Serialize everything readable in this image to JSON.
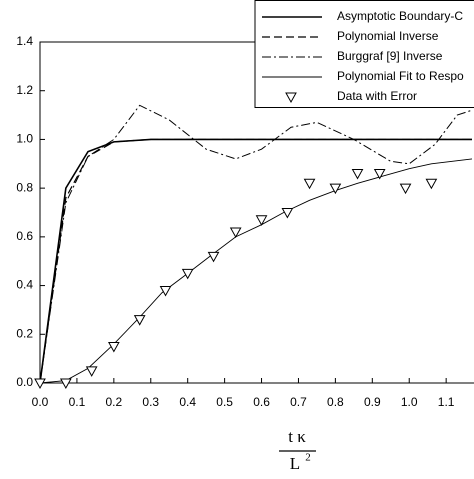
{
  "chart_data": {
    "type": "line",
    "x_label_numerator": "t κ",
    "x_label_denominator": "L",
    "x_label_exponent": "2",
    "xlim": [
      0,
      1.17
    ],
    "ylim": [
      0,
      1.4
    ],
    "xticks": [
      {
        "value": 0,
        "label": "0.0"
      },
      {
        "value": 0.1,
        "label": "0.1"
      },
      {
        "value": 0.2,
        "label": "0.2"
      },
      {
        "value": 0.3,
        "label": "0.3"
      },
      {
        "value": 0.4,
        "label": "0.4"
      },
      {
        "value": 0.5,
        "label": "0.5"
      },
      {
        "value": 0.6,
        "label": "0.6"
      },
      {
        "value": 0.7,
        "label": "0.7"
      },
      {
        "value": 0.8,
        "label": "0.8"
      },
      {
        "value": 0.9,
        "label": "0.9"
      },
      {
        "value": 1.0,
        "label": "1.0"
      },
      {
        "value": 1.1,
        "label": "1.1"
      }
    ],
    "yticks": [
      {
        "value": 0,
        "label": "0.0"
      },
      {
        "value": 0.2,
        "label": "0.2"
      },
      {
        "value": 0.4,
        "label": "0.4"
      },
      {
        "value": 0.6,
        "label": "0.6"
      },
      {
        "value": 0.8,
        "label": "0.8"
      },
      {
        "value": 1.0,
        "label": "1.0"
      },
      {
        "value": 1.2,
        "label": "1.2"
      },
      {
        "value": 1.4,
        "label": "1.4"
      }
    ],
    "series": [
      {
        "name": "Asymptotic Boundary-C",
        "color": "#000000",
        "dash": "solid",
        "width": 1.6,
        "x": [
          0,
          0.07,
          0.13,
          0.2,
          0.3,
          0.5,
          0.7,
          0.9,
          1.1,
          1.17
        ],
        "values": [
          0,
          0.8,
          0.95,
          0.99,
          1.0,
          1.0,
          1.0,
          1.0,
          1.0,
          1.0
        ]
      },
      {
        "name": "Polynomial Inverse",
        "color": "#000000",
        "dash": "dashed",
        "width": 1.2,
        "x": [
          0,
          0.07,
          0.13,
          0.2,
          0.3,
          0.5,
          0.7,
          0.9,
          1.1,
          1.17
        ],
        "values": [
          0,
          0.76,
          0.93,
          0.99,
          1.0,
          1.0,
          1.0,
          1.0,
          1.0,
          1.0
        ]
      },
      {
        "name": "Burggraf [9] Inverse",
        "color": "#000000",
        "dash": "dashdot",
        "width": 1.0,
        "x": [
          0,
          0.07,
          0.13,
          0.2,
          0.27,
          0.35,
          0.45,
          0.53,
          0.6,
          0.68,
          0.75,
          0.85,
          0.95,
          1.0,
          1.07,
          1.13,
          1.17
        ],
        "values": [
          0,
          0.74,
          0.93,
          1.0,
          1.14,
          1.08,
          0.96,
          0.92,
          0.96,
          1.05,
          1.07,
          1.0,
          0.91,
          0.9,
          0.98,
          1.1,
          1.12
        ]
      },
      {
        "name": "Polynomial Fit to Respo",
        "color": "#000000",
        "dash": "solid",
        "width": 0.9,
        "x": [
          0,
          0.07,
          0.13,
          0.2,
          0.27,
          0.33,
          0.4,
          0.46,
          0.53,
          0.6,
          0.66,
          0.73,
          0.8,
          0.86,
          0.93,
          1.0,
          1.06,
          1.17
        ],
        "values": [
          0,
          0.01,
          0.06,
          0.16,
          0.27,
          0.37,
          0.45,
          0.52,
          0.6,
          0.65,
          0.7,
          0.75,
          0.79,
          0.82,
          0.85,
          0.88,
          0.9,
          0.92
        ]
      },
      {
        "name": "Data with Error",
        "color": "#000000",
        "marker": "triangle-down",
        "x": [
          0,
          0.07,
          0.14,
          0.2,
          0.27,
          0.34,
          0.4,
          0.47,
          0.53,
          0.6,
          0.67,
          0.73,
          0.8,
          0.86,
          0.92,
          0.99,
          1.06
        ],
        "values": [
          0,
          0,
          0.05,
          0.15,
          0.26,
          0.38,
          0.45,
          0.52,
          0.62,
          0.67,
          0.7,
          0.82,
          0.8,
          0.86,
          0.86,
          0.8,
          0.82
        ]
      }
    ]
  }
}
